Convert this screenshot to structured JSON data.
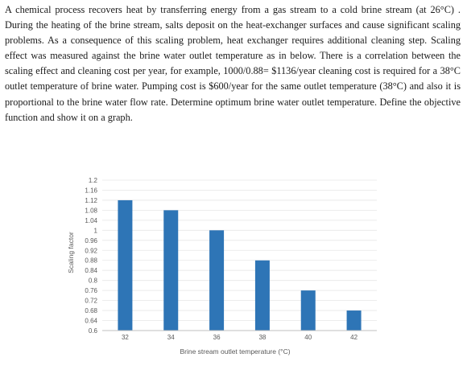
{
  "problem": {
    "text": "A chemical process recovers heat by transferring energy from a gas stream to a cold brine stream (at 26°C) . During the heating of the brine stream, salts deposit on the heat-exchanger surfaces and cause significant scaling problems. As a consequence of this scaling problem, heat exchanger requires additional cleaning step. Scaling effect was measured against the brine water outlet temperature as in below. There is a correlation between the scaling effect and cleaning cost per year, for example, 1000/0.88= $1136/year cleaning cost is required for a 38°C outlet temperature of brine water. Pumping cost is $600/year for the same outlet temperature (38°C) and also it is proportional to the brine water flow rate. Determine optimum brine water outlet temperature. Define the objective function and show it on a graph."
  },
  "chart_data": {
    "type": "bar",
    "x": [
      32,
      34,
      36,
      38,
      40,
      42
    ],
    "values": [
      1.12,
      1.08,
      1.0,
      0.88,
      0.76,
      0.68
    ],
    "xlabel": "Brine stream outlet temperature (°C)",
    "ylabel": "Scaling factor",
    "ylim": [
      0.6,
      1.2
    ],
    "yticks": [
      "1.2",
      "1.16",
      "1.12",
      "1.08",
      "1.04",
      "1",
      "0.96",
      "0.92",
      "0.88",
      "0.84",
      "0.8",
      "0.76",
      "0.72",
      "0.68",
      "0.64",
      "0.6"
    ],
    "xticks": [
      "32",
      "34",
      "36",
      "38",
      "40",
      "42"
    ],
    "bar_color": "#2e75b6",
    "grid": true
  }
}
